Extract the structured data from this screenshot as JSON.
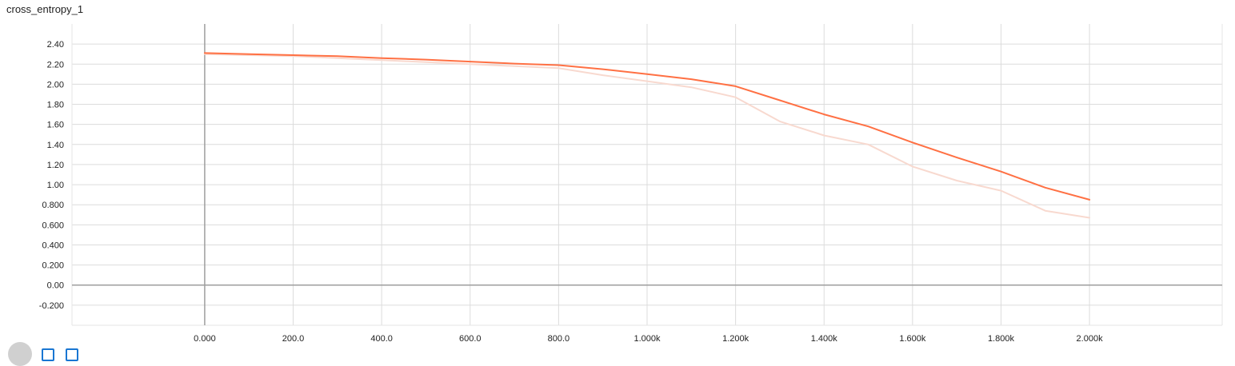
{
  "card": {
    "title": "cross_entropy_1"
  },
  "chart_data": {
    "type": "line",
    "title": "cross_entropy_1",
    "xlabel": "",
    "ylabel": "",
    "xlim": [
      -300,
      2300
    ],
    "ylim": [
      -0.4,
      2.6
    ],
    "x_ticks": [
      0,
      200,
      400,
      600,
      800,
      1000,
      1200,
      1400,
      1600,
      1800,
      2000
    ],
    "x_tick_labels": [
      "0.000",
      "200.0",
      "400.0",
      "600.0",
      "800.0",
      "1.000k",
      "1.200k",
      "1.400k",
      "1.600k",
      "1.800k",
      "2.000k"
    ],
    "y_ticks": [
      -0.2,
      0.0,
      0.2,
      0.4,
      0.6,
      0.8,
      1.0,
      1.2,
      1.4,
      1.6,
      1.8,
      2.0,
      2.2,
      2.4
    ],
    "y_tick_labels": [
      "-0.200",
      "0.00",
      "0.200",
      "0.400",
      "0.600",
      "0.800",
      "1.00",
      "1.20",
      "1.40",
      "1.60",
      "1.80",
      "2.00",
      "2.20",
      "2.40"
    ],
    "grid": true,
    "series": [
      {
        "color": "#f8d9cf",
        "x": [
          0,
          100,
          200,
          300,
          400,
          500,
          600,
          700,
          800,
          900,
          1000,
          1100,
          1200,
          1300,
          1400,
          1500,
          1600,
          1700,
          1800,
          1900,
          2000
        ],
        "y": [
          2.3,
          2.29,
          2.28,
          2.26,
          2.24,
          2.22,
          2.2,
          2.18,
          2.16,
          2.09,
          2.03,
          1.97,
          1.87,
          1.63,
          1.49,
          1.4,
          1.18,
          1.04,
          0.94,
          0.74,
          0.67
        ]
      },
      {
        "color": "#ff7043",
        "x": [
          0,
          100,
          200,
          300,
          400,
          500,
          600,
          700,
          800,
          900,
          1000,
          1100,
          1200,
          1300,
          1400,
          1500,
          1600,
          1700,
          1800,
          1900,
          2000
        ],
        "y": [
          2.31,
          2.3,
          2.29,
          2.28,
          2.26,
          2.245,
          2.225,
          2.205,
          2.19,
          2.15,
          2.1,
          2.05,
          1.98,
          1.84,
          1.7,
          1.58,
          1.42,
          1.27,
          1.13,
          0.97,
          0.85
        ]
      }
    ]
  }
}
